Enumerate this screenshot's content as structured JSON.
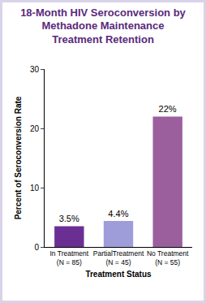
{
  "chart_data": {
    "type": "bar",
    "title": "18-Month HIV Seroconversion by Methadone Maintenance Treatment Retention",
    "x_label": "Treatment Status",
    "y_label": "Percent of Seroconversion Rate",
    "categories": [
      "In Treatment (N = 85)",
      "PartialTreatment (N = 45)",
      "No Treatment (N = 55)"
    ],
    "values": [
      3.5,
      4.4,
      22
    ],
    "value_labels": [
      "3.5%",
      "4.4%",
      "22%"
    ],
    "data_labels": true,
    "colors": [
      "#6b2f93",
      "#9f9dd9",
      "#9c5f9e"
    ],
    "ylim": [
      0,
      30
    ],
    "yticks": [
      0,
      10,
      20,
      30
    ],
    "grid": false
  }
}
